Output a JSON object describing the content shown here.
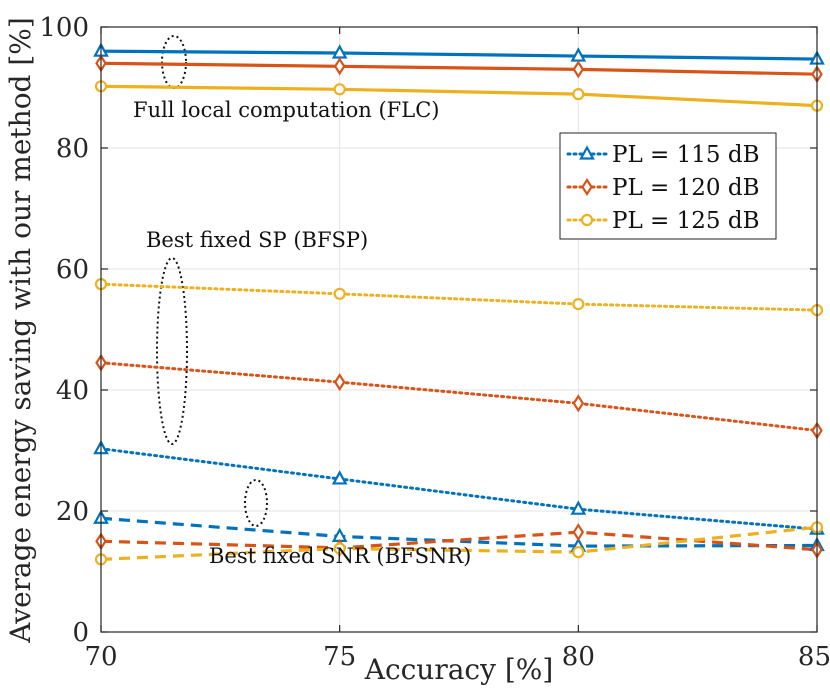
{
  "chart_data": {
    "type": "line",
    "xlabel": "Accuracy [%]",
    "ylabel": "Average energy saving with our method [%]",
    "x": [
      70,
      75,
      80,
      85
    ],
    "xlim": [
      70,
      85
    ],
    "ylim": [
      0,
      100
    ],
    "xticks": [
      "70",
      "75",
      "80",
      "85"
    ],
    "yticks": [
      "0",
      "20",
      "40",
      "60",
      "80",
      "100"
    ],
    "grid": true,
    "legend_position": "upper-right",
    "legend": [
      {
        "label": "PL = 115 dB",
        "color": "#0072BD",
        "marker": "triangle"
      },
      {
        "label": "PL = 120 dB",
        "color": "#D95319",
        "marker": "diamond"
      },
      {
        "label": "PL = 125 dB",
        "color": "#EDB120",
        "marker": "circle"
      }
    ],
    "series": [
      {
        "name": "FLC, PL = 115 dB",
        "group": "FLC",
        "style": "solid",
        "color": "#0072BD",
        "marker": "triangle",
        "values": [
          96.0,
          95.7,
          95.2,
          94.7
        ]
      },
      {
        "name": "FLC, PL = 120 dB",
        "group": "FLC",
        "style": "solid",
        "color": "#D95319",
        "marker": "diamond",
        "values": [
          94.0,
          93.5,
          93.0,
          92.2
        ]
      },
      {
        "name": "FLC, PL = 125 dB",
        "group": "FLC",
        "style": "solid",
        "color": "#EDB120",
        "marker": "circle",
        "values": [
          90.2,
          89.7,
          88.9,
          87.0
        ]
      },
      {
        "name": "BFSP, PL = 115 dB",
        "group": "BFSP",
        "style": "dotted",
        "color": "#0072BD",
        "marker": "triangle",
        "values": [
          30.3,
          25.3,
          20.3,
          17.0
        ]
      },
      {
        "name": "BFSP, PL = 120 dB",
        "group": "BFSP",
        "style": "dotted",
        "color": "#D95319",
        "marker": "diamond",
        "values": [
          44.5,
          41.3,
          37.8,
          33.3
        ]
      },
      {
        "name": "BFSP, PL = 125 dB",
        "group": "BFSP",
        "style": "dotted",
        "color": "#EDB120",
        "marker": "circle",
        "values": [
          57.5,
          55.9,
          54.2,
          53.2
        ]
      },
      {
        "name": "BFSNR, PL = 115 dB",
        "group": "BFSNR",
        "style": "dashed",
        "color": "#0072BD",
        "marker": "triangle",
        "values": [
          18.8,
          15.8,
          14.2,
          14.3
        ]
      },
      {
        "name": "BFSNR, PL = 120 dB",
        "group": "BFSNR",
        "style": "dashed",
        "color": "#D95319",
        "marker": "diamond",
        "values": [
          15.0,
          13.9,
          16.5,
          13.6
        ]
      },
      {
        "name": "BFSNR, PL = 125 dB",
        "group": "BFSNR",
        "style": "dashed",
        "color": "#EDB120",
        "marker": "circle",
        "values": [
          12.0,
          13.8,
          13.2,
          17.3
        ]
      }
    ],
    "annotations": {
      "flc": "Full local computation (FLC)",
      "bfsp": "Best fixed SP (BFSP)",
      "bfsnr": "Best fixed SNR (BFSNR)"
    }
  }
}
